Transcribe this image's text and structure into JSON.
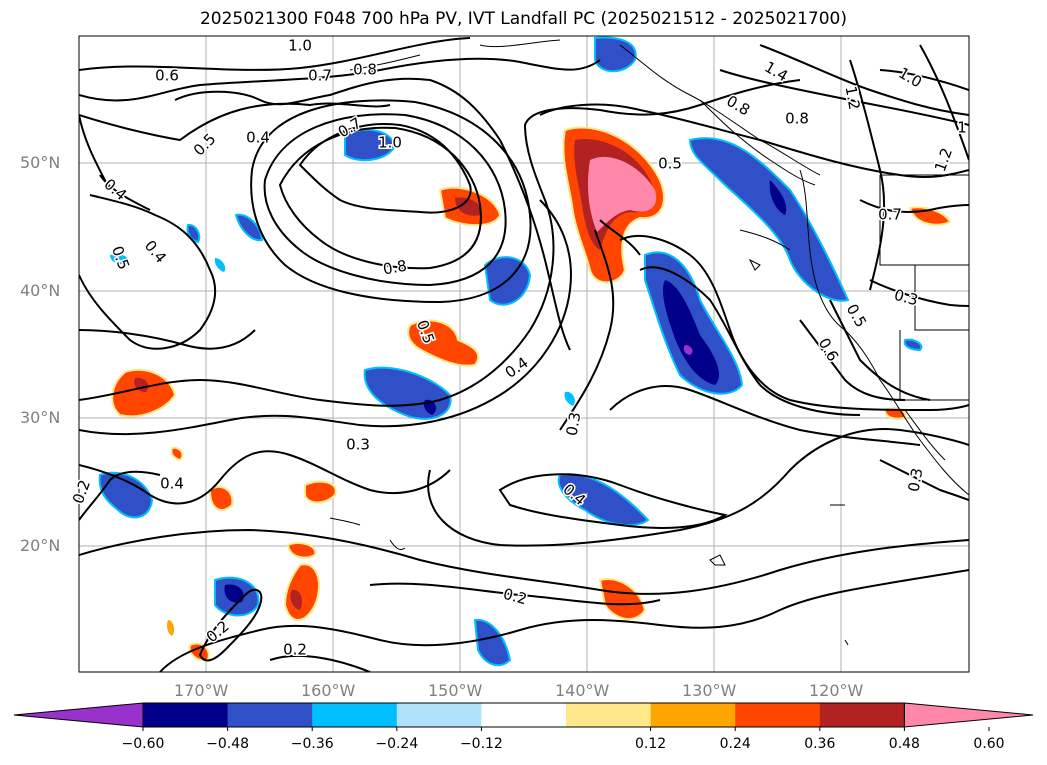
{
  "title": "2025021300 F048 700 hPa PV, IVT Landfall PC (2025021512 - 2025021700)",
  "lat_labels": [
    "50°N",
    "40°N",
    "30°N",
    "20°N"
  ],
  "lon_labels": [
    "170°W",
    "160°W",
    "150°W",
    "140°W",
    "130°W",
    "120°W"
  ],
  "contour_labels": [
    "1.0",
    "0.6",
    "0.7",
    "0.8",
    "0.5",
    "0.4",
    "0.7",
    "1.0",
    "0.4",
    "0.5",
    "0.4",
    "0.8",
    "0.5",
    "0.4",
    "0.3",
    "0.3",
    "0.4",
    "0.4",
    "0.2",
    "0.2",
    "0.2",
    "0.2",
    "1.4",
    "0.8",
    "1.2",
    "0.8",
    "1.0",
    "1.2",
    "0.5",
    "0.7",
    "0.3",
    "0.5",
    "0.6",
    "0.3",
    "1"
  ],
  "colorbar": {
    "ticks": [
      "−0.60",
      "−0.48",
      "−0.36",
      "−0.24",
      "−0.12",
      "0.12",
      "0.24",
      "0.36",
      "0.48",
      "0.60"
    ],
    "colors": [
      "#9932cc",
      "#00008b",
      "#3050c8",
      "#00bfff",
      "#afe1fa",
      "#ffffff",
      "#ffe88a",
      "#ffa500",
      "#ff4500",
      "#b22222",
      "#ff88aa"
    ]
  },
  "fill_colors": {
    "neg_light": "#00bfff",
    "neg_mid": "#3050c8",
    "neg_strong": "#00008b",
    "neg_max": "#9932cc",
    "pos_light": "#ffe88a",
    "pos_mid": "#ff4500",
    "pos_strong": "#b22222",
    "pos_max": "#ff88aa"
  }
}
